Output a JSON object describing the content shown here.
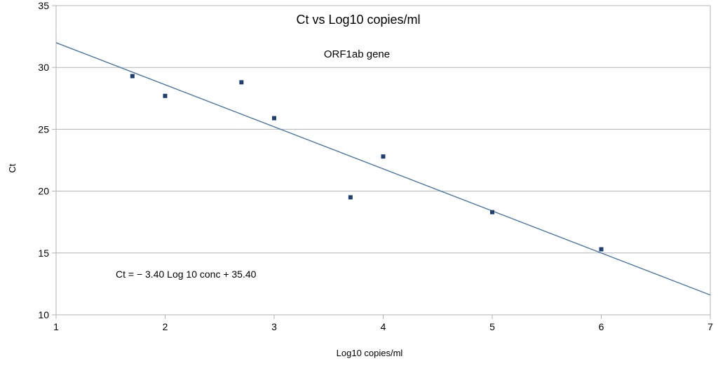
{
  "chart_data": {
    "type": "scatter",
    "title": "Ct vs Log10 copies/ml",
    "subtitle": "ORF1ab gene",
    "xlabel": "Log10 copies/ml",
    "ylabel": "Ct",
    "xlim": [
      1,
      7
    ],
    "ylim": [
      10,
      35
    ],
    "x_ticks": [
      "1",
      "2",
      "3",
      "4",
      "5",
      "6",
      "7"
    ],
    "y_ticks": [
      "10",
      "15",
      "20",
      "25",
      "30",
      "35"
    ],
    "grid": "horizontal",
    "series": [
      {
        "points": [
          {
            "x": 1.7,
            "y": 29.3
          },
          {
            "x": 2.0,
            "y": 27.7
          },
          {
            "x": 2.7,
            "y": 28.8
          },
          {
            "x": 3.0,
            "y": 25.9
          },
          {
            "x": 3.7,
            "y": 19.5
          },
          {
            "x": 4.0,
            "y": 22.8
          },
          {
            "x": 5.0,
            "y": 18.3
          },
          {
            "x": 6.0,
            "y": 15.3
          }
        ],
        "color": "#1f3f73"
      }
    ],
    "trendline": {
      "type": "linear",
      "slope": -3.4,
      "intercept": 35.4,
      "color": "#4a78a6"
    },
    "annotation": "Ct  = − 3.40 Log 10 conc + 35.40"
  }
}
